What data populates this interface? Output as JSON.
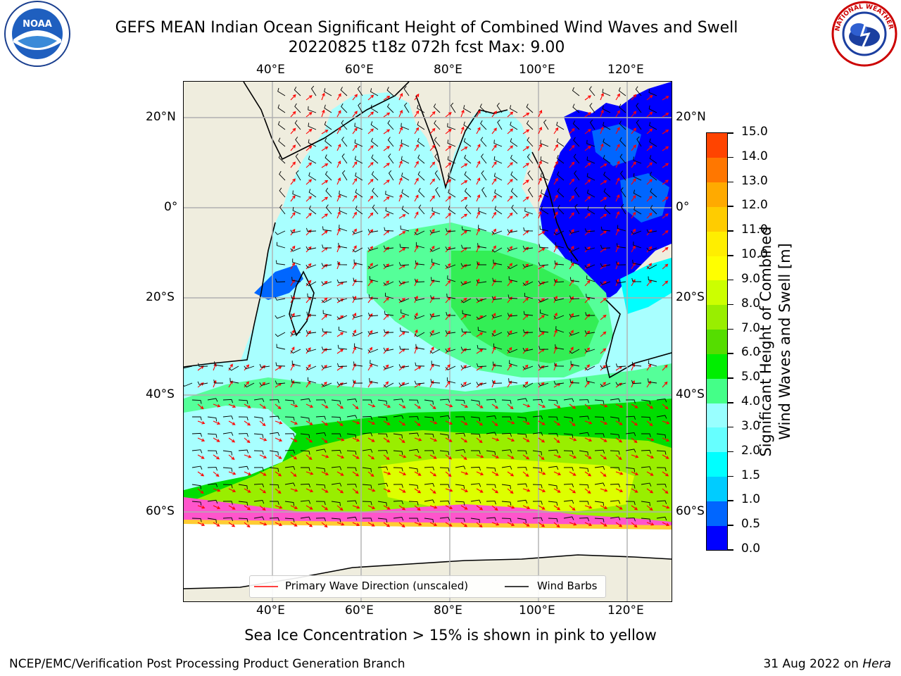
{
  "header": {
    "title_line1": "GEFS MEAN Indian Ocean Significant Height of Combined Wind Waves and Swell",
    "title_line2": "20220825 t18z 072h fcst   Max: 9.00"
  },
  "logos": {
    "left": {
      "name": "noaa-logo",
      "text": "NOAA"
    },
    "right": {
      "name": "nws-logo",
      "text": "NATIONAL WEATHER SERVICE"
    }
  },
  "map": {
    "lon_labels": [
      "40°E",
      "60°E",
      "80°E",
      "100°E",
      "120°E"
    ],
    "lat_labels": [
      "20°N",
      "0°",
      "20°S",
      "40°S",
      "60°S"
    ],
    "ocean_colors": {
      "deep_blue": "#0000ff",
      "blue": "#0066ff",
      "cyan": "#00ffff",
      "light_cyan": "#99ffff",
      "lightest_cyan": "#a8ffff",
      "light_green": "#55ff99",
      "green": "#33ee55",
      "bright_green": "#00dd00",
      "yellow_green": "#99ee00",
      "yellow": "#ddff00",
      "land": "#efedde",
      "ice_pink": "#ff55cc",
      "ice_yellow": "#ffcc33"
    }
  },
  "legend": {
    "wave_label": "Primary Wave Direction (unscaled)",
    "wind_label": "Wind Barbs",
    "wave_color": "#ff0000",
    "wind_color": "#000000"
  },
  "colorbar": {
    "label": "Significant Height of Combined Wind Waves and Swell [m]",
    "ticks": [
      "0.0",
      "0.5",
      "1.0",
      "1.5",
      "2.0",
      "3.0",
      "4.0",
      "5.0",
      "6.0",
      "7.0",
      "8.0",
      "9.0",
      "10.0",
      "11.0",
      "12.0",
      "13.0",
      "14.0",
      "15.0"
    ],
    "colors": [
      "#0000ff",
      "#0066ff",
      "#00ccff",
      "#00ffff",
      "#66ffff",
      "#99ffff",
      "#44ff88",
      "#00ee00",
      "#55dd00",
      "#99ee00",
      "#ccff00",
      "#ffff00",
      "#ffee00",
      "#ffcc00",
      "#ffaa00",
      "#ff7700",
      "#ff4400",
      "#ff0000"
    ]
  },
  "footnote": "Sea Ice Concentration > 15% is shown in pink to yellow",
  "footer": {
    "left": "NCEP/EMC/Verification Post Processing Product Generation Branch",
    "right_prefix": "31 Aug 2022 on ",
    "right_italic": "Hera"
  }
}
